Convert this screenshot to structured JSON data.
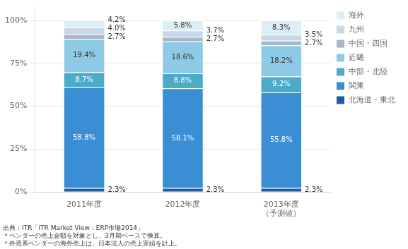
{
  "chart_data": {
    "type": "bar",
    "stacked": true,
    "categories": [
      "2011年度",
      "2012年度",
      "2013年度\n（予測値）"
    ],
    "series": [
      {
        "name": "北海道・東北",
        "color": "#1A5EA8",
        "values": [
          2.3,
          2.3,
          2.3
        ],
        "value_labels": [
          "2.3%",
          "2.3%",
          "2.3%"
        ]
      },
      {
        "name": "関東",
        "color": "#3A8FD4",
        "values": [
          58.8,
          58.1,
          55.8
        ],
        "value_labels": [
          "58.8%",
          "58.1%",
          "55.8%"
        ]
      },
      {
        "name": "中部・北陸",
        "color": "#4BABC8",
        "values": [
          8.7,
          8.8,
          9.2
        ],
        "value_labels": [
          "8.7%",
          "8.8%",
          "9.2%"
        ]
      },
      {
        "name": "近畿",
        "color": "#8ECAE6",
        "values": [
          19.4,
          18.6,
          18.2
        ],
        "value_labels": [
          "19.4%",
          "18.6%",
          "18.2%"
        ]
      },
      {
        "name": "中国・四国",
        "color": "#A8B8C8",
        "values": [
          2.7,
          2.7,
          2.7
        ],
        "value_labels": [
          "2.7%",
          "2.7%",
          "2.7%"
        ]
      },
      {
        "name": "九州",
        "color": "#C8D8E8",
        "values": [
          4.0,
          3.7,
          3.5
        ],
        "value_labels": [
          "4.0%",
          "3.7%",
          "3.5%"
        ]
      },
      {
        "name": "海外",
        "color": "#DCEEF8",
        "values": [
          4.2,
          5.8,
          8.3
        ],
        "value_labels": [
          "4.2%",
          "5.8%",
          "8.3%"
        ]
      }
    ],
    "ylim": [
      0,
      108
    ],
    "yticks": [
      {
        "value": 0,
        "label": "0%"
      },
      {
        "value": 25,
        "label": "25%"
      },
      {
        "value": 50,
        "label": "50%"
      },
      {
        "value": 75,
        "label": "75%"
      },
      {
        "value": 100,
        "label": "100%"
      }
    ],
    "grid": true,
    "legend": "right",
    "data_labels": true,
    "footnote": "出典：ITR「ITR Market View：ERP市場2014」\n＊ベンダーの売上金額を対象とし、3月期ベースで換算。\n＊外資系ベンダーの海外売上は、日本法人の売上実績を計上。"
  }
}
